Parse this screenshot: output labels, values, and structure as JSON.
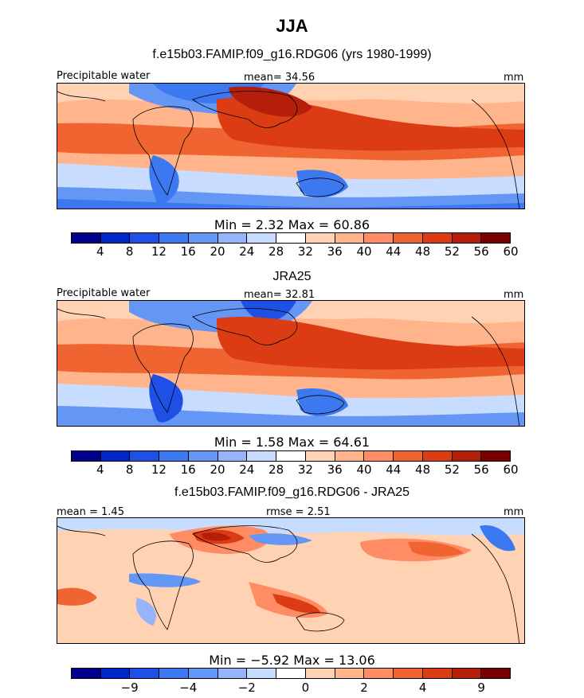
{
  "figure": {
    "title": "JJA",
    "panels": [
      {
        "subtitle": "f.e15b03.FAMIP.f09_g16.RDG06 (yrs 1980-1999)",
        "left_label": "Precipitable water",
        "center_label": "mean=   34.56",
        "right_label": "mm",
        "minmax": "Min =     2.32  Max =    60.86",
        "colorbar": [
          "#00008c",
          "#0028c8",
          "#1e50e6",
          "#3c78f0",
          "#6496f5",
          "#96b4fa",
          "#c8dcff",
          "#ffffff",
          "#ffd2b4",
          "#ffb48c",
          "#ff8c64",
          "#f06432",
          "#dc3c14",
          "#b41e0a",
          "#780000"
        ],
        "ticks": [
          "4",
          "8",
          "12",
          "16",
          "20",
          "24",
          "28",
          "32",
          "36",
          "40",
          "44",
          "48",
          "52",
          "56",
          "60"
        ],
        "tick_positions": [
          1,
          2,
          3,
          4,
          5,
          6,
          7,
          8,
          9,
          10,
          11,
          12,
          13,
          14,
          15
        ]
      },
      {
        "subtitle": "JRA25",
        "left_label": "Precipitable water",
        "center_label": "mean=   32.81",
        "right_label": "mm",
        "minmax": "Min =     1.58  Max =    64.61",
        "colorbar": [
          "#00008c",
          "#0028c8",
          "#1e50e6",
          "#3c78f0",
          "#6496f5",
          "#96b4fa",
          "#c8dcff",
          "#ffffff",
          "#ffd2b4",
          "#ffb48c",
          "#ff8c64",
          "#f06432",
          "#dc3c14",
          "#b41e0a",
          "#780000"
        ],
        "ticks": [
          "4",
          "8",
          "12",
          "16",
          "20",
          "24",
          "28",
          "32",
          "36",
          "40",
          "44",
          "48",
          "52",
          "56",
          "60"
        ],
        "tick_positions": [
          1,
          2,
          3,
          4,
          5,
          6,
          7,
          8,
          9,
          10,
          11,
          12,
          13,
          14,
          15
        ]
      },
      {
        "subtitle": "f.e15b03.FAMIP.f09_g16.RDG06 - JRA25",
        "left_label": "mean =    1.45",
        "center_label": "rmse =    2.51",
        "right_label": "mm",
        "minmax": "Min =   −5.92  Max =    13.06",
        "colorbar": [
          "#00008c",
          "#0028c8",
          "#1e50e6",
          "#3c78f0",
          "#6496f5",
          "#96b4fa",
          "#c8dcff",
          "#ffffff",
          "#ffd2b4",
          "#ffb48c",
          "#ff8c64",
          "#f06432",
          "#dc3c14",
          "#b41e0a",
          "#780000"
        ],
        "ticks": [
          "−9",
          "−4",
          "−2",
          "0",
          "2",
          "4",
          "9"
        ],
        "tick_positions": [
          2,
          4,
          6,
          8,
          10,
          12,
          14
        ]
      }
    ]
  }
}
